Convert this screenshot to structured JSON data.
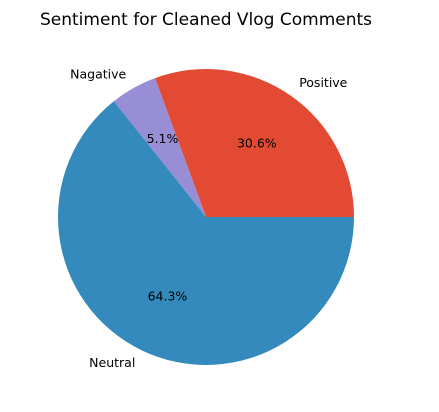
{
  "chart_data": {
    "type": "pie",
    "title": "Sentiment for Cleaned Vlog Comments",
    "labels": [
      "Positive",
      "Nagative",
      "Neutral"
    ],
    "values": [
      30.6,
      5.1,
      64.3
    ],
    "percent_labels": [
      "30.6%",
      "5.1%",
      "64.3%"
    ],
    "colors": [
      "#E24A33",
      "#988ED5",
      "#348ABD"
    ],
    "start_angle_deg": 0,
    "direction": "counterclockwise",
    "legend": "none"
  }
}
